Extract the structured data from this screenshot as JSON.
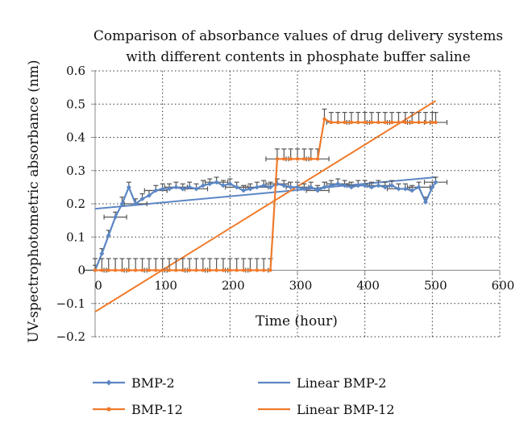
{
  "chart_data": {
    "type": "line",
    "title": [
      "Comparison of absorbance values of drug delivery systems",
      "with different contents in phosphate buffer saline"
    ],
    "xlabel": "Time (hour)",
    "ylabel": "UV-spectrophotometric absorbance (nm)",
    "xlim": [
      0,
      600
    ],
    "ylim": [
      -0.2,
      0.6
    ],
    "x_ticks": [
      "0",
      "100",
      "200",
      "300",
      "400",
      "500",
      "600"
    ],
    "y_ticks": [
      "−0.2",
      "−0.1",
      "0",
      "0.1",
      "0.2",
      "0.3",
      "0.4",
      "0.5",
      "0.6"
    ],
    "grid": "dotted",
    "legend_position": "bottom",
    "series": [
      {
        "name": "BMP-2",
        "kind": "data",
        "color": "#5B86C4",
        "marker": "diamond",
        "x": [
          0,
          10,
          20,
          30,
          40,
          50,
          60,
          70,
          80,
          90,
          100,
          110,
          120,
          130,
          140,
          150,
          160,
          170,
          180,
          190,
          200,
          210,
          220,
          230,
          240,
          250,
          260,
          270,
          280,
          290,
          300,
          310,
          320,
          330,
          340,
          350,
          360,
          370,
          380,
          390,
          400,
          410,
          420,
          430,
          440,
          450,
          460,
          470,
          480,
          490,
          500,
          505
        ],
        "y": [
          0.0,
          0.05,
          0.105,
          0.16,
          0.2,
          0.25,
          0.2,
          0.215,
          0.225,
          0.24,
          0.245,
          0.245,
          0.25,
          0.245,
          0.25,
          0.245,
          0.255,
          0.26,
          0.265,
          0.255,
          0.26,
          0.25,
          0.24,
          0.245,
          0.25,
          0.255,
          0.25,
          0.26,
          0.255,
          0.25,
          0.25,
          0.245,
          0.25,
          0.24,
          0.25,
          0.255,
          0.26,
          0.255,
          0.25,
          0.255,
          0.255,
          0.25,
          0.255,
          0.25,
          0.255,
          0.245,
          0.245,
          0.24,
          0.25,
          0.205,
          0.25,
          0.265
        ],
        "error": [
          0.015,
          0.015,
          0.015,
          0.015,
          0.02,
          0.015,
          0.015,
          0.015,
          0.015,
          0.015,
          0.015,
          0.015,
          0.015,
          0.015,
          0.015,
          0.015,
          0.015,
          0.015,
          0.015,
          0.015,
          0.015,
          0.015,
          0.015,
          0.015,
          0.015,
          0.015,
          0.015,
          0.015,
          0.015,
          0.015,
          0.015,
          0.015,
          0.015,
          0.015,
          0.015,
          0.015,
          0.015,
          0.015,
          0.015,
          0.015,
          0.015,
          0.015,
          0.015,
          0.015,
          0.015,
          0.015,
          0.015,
          0.015,
          0.015,
          0.015,
          0.015,
          0.015
        ]
      },
      {
        "name": "BMP-12",
        "kind": "data",
        "color": "#F07A2A",
        "marker": "circle",
        "x": [
          0,
          10,
          20,
          30,
          40,
          50,
          60,
          70,
          80,
          90,
          100,
          110,
          120,
          130,
          140,
          150,
          160,
          170,
          180,
          190,
          200,
          210,
          220,
          230,
          240,
          250,
          260,
          270,
          280,
          290,
          300,
          310,
          320,
          330,
          340,
          350,
          360,
          370,
          380,
          390,
          400,
          410,
          420,
          430,
          440,
          450,
          460,
          470,
          480,
          490,
          500,
          505
        ],
        "y": [
          0,
          0,
          0,
          0,
          0,
          0,
          0,
          0,
          0,
          0,
          0,
          0,
          0,
          0,
          0,
          0,
          0,
          0,
          0,
          0,
          0,
          0,
          0,
          0,
          0,
          0,
          0,
          0.335,
          0.335,
          0.335,
          0.335,
          0.335,
          0.335,
          0.335,
          0.455,
          0.445,
          0.445,
          0.445,
          0.445,
          0.445,
          0.445,
          0.445,
          0.445,
          0.445,
          0.445,
          0.445,
          0.445,
          0.445,
          0.445,
          0.445,
          0.445,
          0.445
        ],
        "error": [
          0.035,
          0.035,
          0.035,
          0.035,
          0.035,
          0.035,
          0.035,
          0.035,
          0.035,
          0.035,
          0.035,
          0.035,
          0.035,
          0.035,
          0.035,
          0.035,
          0.035,
          0.035,
          0.035,
          0.035,
          0.035,
          0.035,
          0.035,
          0.035,
          0.035,
          0.035,
          0.035,
          0.03,
          0.03,
          0.03,
          0.03,
          0.03,
          0.03,
          0.03,
          0.03,
          0.03,
          0.03,
          0.03,
          0.03,
          0.03,
          0.03,
          0.03,
          0.03,
          0.03,
          0.03,
          0.03,
          0.03,
          0.03,
          0.03,
          0.03,
          0.03,
          0.03
        ]
      },
      {
        "name": "Linear BMP-2",
        "kind": "trend",
        "color": "#5B86C4",
        "x": [
          0,
          505
        ],
        "y": [
          0.185,
          0.28
        ]
      },
      {
        "name": "Linear BMP-12",
        "kind": "trend",
        "color": "#F07A2A",
        "x": [
          0,
          505
        ],
        "y": [
          -0.125,
          0.51
        ]
      }
    ]
  }
}
